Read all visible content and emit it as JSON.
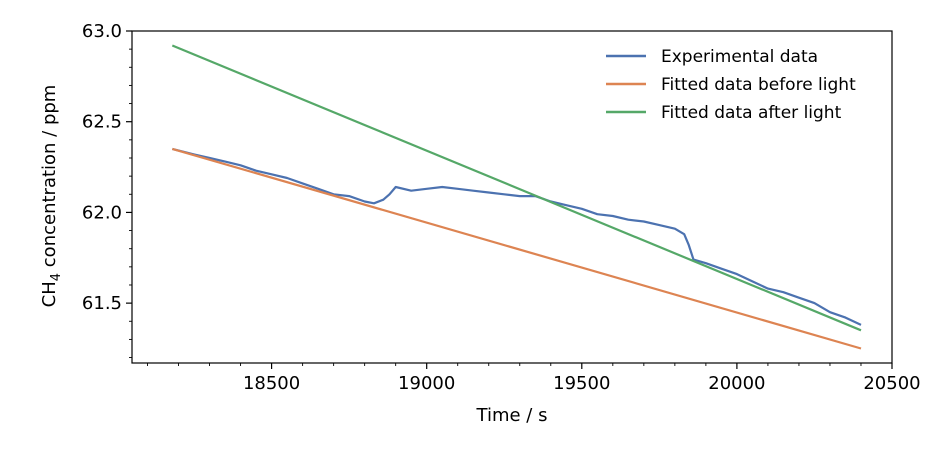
{
  "chart_data": {
    "type": "line",
    "xlabel": "Time / s",
    "ylabel_main": "CH",
    "ylabel_sub": "4",
    "ylabel_rest": " concentration / ppm",
    "xlim": [
      18050,
      20500
    ],
    "ylim": [
      61.17,
      63.0
    ],
    "x_ticks": [
      18500,
      19000,
      19500,
      20000,
      20500
    ],
    "x_tick_labels": [
      "18500",
      "19000",
      "19500",
      "20000",
      "20500"
    ],
    "y_ticks": [
      61.5,
      62.0,
      62.5,
      63.0
    ],
    "y_tick_labels": [
      "61.5",
      "62.0",
      "62.5",
      "63.0"
    ],
    "legend_position": "top-right",
    "series": [
      {
        "name": "Experimental data",
        "color": "#4c72b0",
        "x": [
          18180,
          18250,
          18300,
          18350,
          18400,
          18450,
          18500,
          18550,
          18600,
          18650,
          18700,
          18750,
          18800,
          18830,
          18860,
          18880,
          18900,
          18950,
          19000,
          19050,
          19100,
          19150,
          19200,
          19250,
          19300,
          19350,
          19400,
          19450,
          19500,
          19550,
          19600,
          19650,
          19700,
          19750,
          19800,
          19830,
          19845,
          19860,
          19900,
          19950,
          20000,
          20050,
          20100,
          20150,
          20200,
          20250,
          20300,
          20350,
          20400
        ],
        "y": [
          62.35,
          62.32,
          62.3,
          62.28,
          62.26,
          62.23,
          62.21,
          62.19,
          62.16,
          62.13,
          62.1,
          62.09,
          62.06,
          62.05,
          62.07,
          62.1,
          62.14,
          62.12,
          62.13,
          62.14,
          62.13,
          62.12,
          62.11,
          62.1,
          62.09,
          62.09,
          62.06,
          62.04,
          62.02,
          61.99,
          61.98,
          61.96,
          61.95,
          61.93,
          61.91,
          61.88,
          61.82,
          61.74,
          61.72,
          61.69,
          61.66,
          61.62,
          61.58,
          61.56,
          61.53,
          61.5,
          61.45,
          61.42,
          61.38
        ]
      },
      {
        "name": "Fitted data before light",
        "color": "#dd8452",
        "x": [
          18180,
          20400
        ],
        "y": [
          62.35,
          61.25
        ]
      },
      {
        "name": "Fitted data after light",
        "color": "#55a868",
        "x": [
          18180,
          20400
        ],
        "y": [
          62.92,
          61.35
        ]
      }
    ]
  }
}
